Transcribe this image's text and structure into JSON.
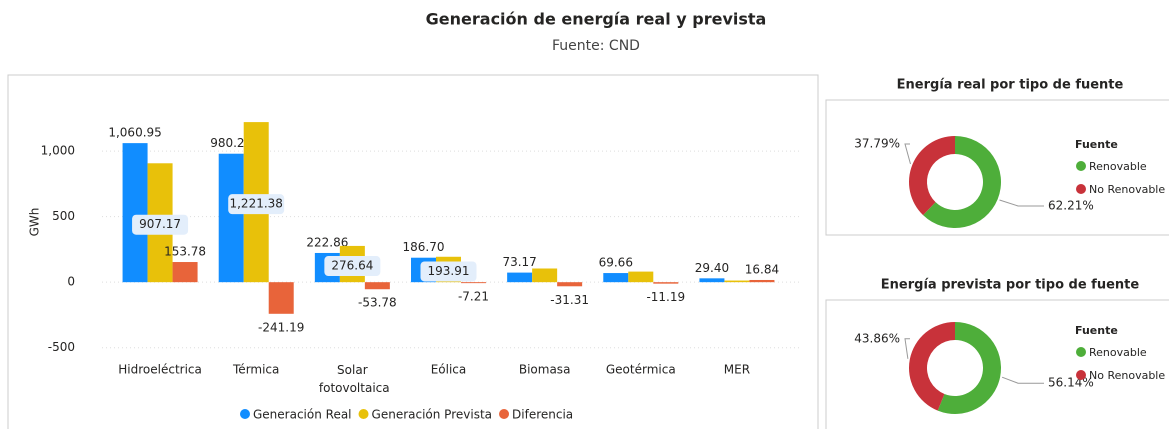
{
  "chart_data": [
    {
      "type": "bar",
      "title": "Generación de energía real y prevista",
      "subtitle": "Fuente: CND",
      "y_label": "GWh",
      "categories": [
        "Hidroeléctrica",
        "Térmica",
        "Solar fotovoltaica",
        "Eólica",
        "Biomasa",
        "Geotérmica",
        "MER"
      ],
      "series": [
        {
          "name": "Generación Real",
          "color": "#118DFF",
          "values": [
            1060.95,
            980.2,
            222.86,
            186.7,
            73.17,
            69.66,
            29.4
          ],
          "value_labels": [
            "1,060.95",
            "980.20",
            "222.86",
            "186.70",
            "73.17",
            "69.66",
            "29.40"
          ]
        },
        {
          "name": "Generación Prevista",
          "color": "#E8C10A",
          "values": [
            907.17,
            1221.38,
            276.64,
            193.91,
            104.48,
            80.85,
            12.56
          ],
          "value_labels": [
            "907.17",
            "1,221.38",
            "276.64",
            "193.91",
            null,
            null,
            null
          ]
        },
        {
          "name": "Diferencia",
          "color": "#E8643A",
          "values": [
            153.78,
            -241.19,
            -53.78,
            -7.21,
            -31.31,
            -11.19,
            16.84
          ],
          "value_labels": [
            "153.78",
            "-241.19",
            "-53.78",
            "-7.21",
            "-31.31",
            "-11.19",
            "16.84"
          ]
        }
      ],
      "ylim": [
        -670,
        1390
      ],
      "yticks": [
        -500,
        0,
        500,
        {
          "value": 1000,
          "label": "1,000"
        }
      ],
      "grid": true,
      "legend": "bottom"
    },
    {
      "type": "donut",
      "title": "Energía real por tipo de fuente",
      "legend_title": "Fuente",
      "categories": [
        "Renovable",
        "No Renovable"
      ],
      "values": [
        62.21,
        37.79
      ],
      "value_labels": [
        "62.21%",
        "37.79%"
      ],
      "colors": [
        "#4EAE3A",
        "#C8323A"
      ],
      "legend": "right"
    },
    {
      "type": "donut",
      "title": "Energía prevista por tipo de fuente",
      "legend_title": "Fuente",
      "categories": [
        "Renovable",
        "No Renovable"
      ],
      "values": [
        56.14,
        43.86
      ],
      "value_labels": [
        "56.14%",
        "43.86%"
      ],
      "colors": [
        "#4EAE3A",
        "#C8323A"
      ],
      "legend": "right"
    }
  ]
}
